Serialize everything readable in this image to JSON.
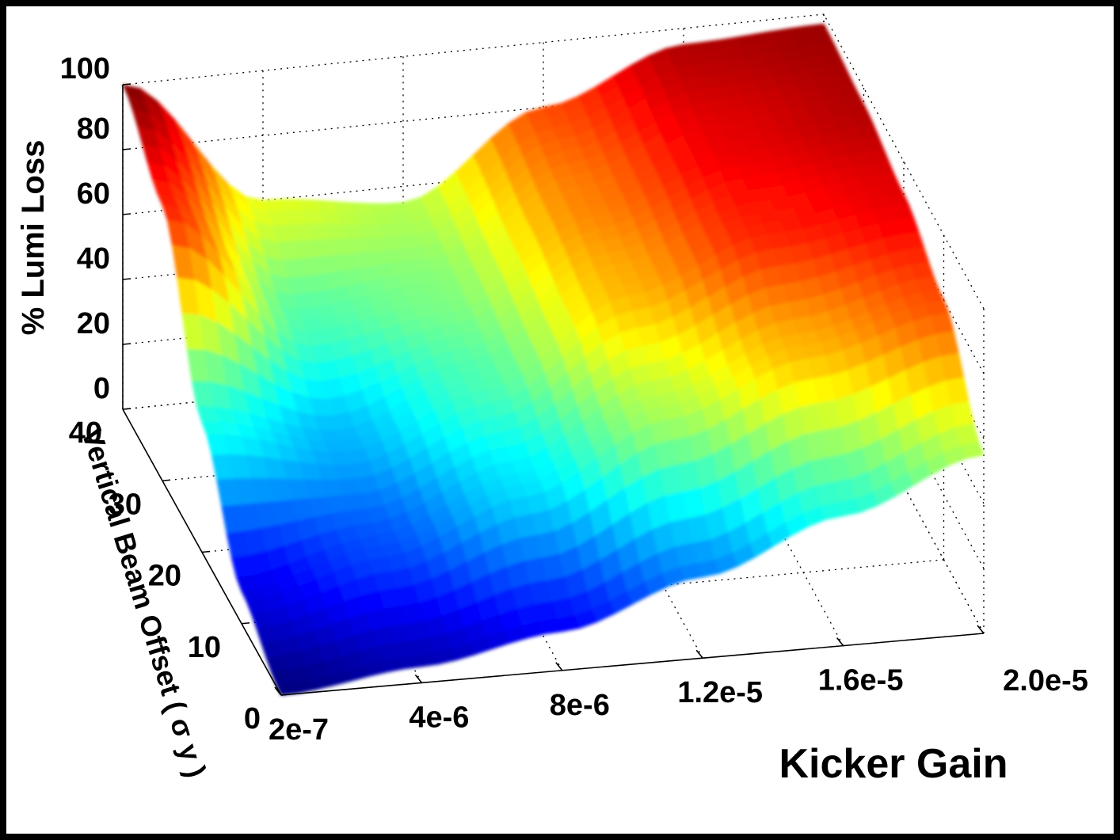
{
  "chart_data": {
    "type": "surface",
    "zlabel": "% Lumi Loss",
    "ylabel": "Vertical Beam Offset ( σ y )",
    "xlabel": "Kicker Gain",
    "z_ticks": [
      "100",
      "80",
      "60",
      "40",
      "20",
      "0"
    ],
    "y_ticks": [
      "40",
      "30",
      "20",
      "10",
      "0"
    ],
    "x_ticks": [
      "2e-7",
      "4e-6",
      "8e-6",
      "1.2e-5",
      "1.6e-5",
      "2.0e-5"
    ],
    "zlim": [
      0,
      100
    ],
    "ylim": [
      0,
      40
    ],
    "xlim": [
      2e-07,
      2e-05
    ],
    "grid": true,
    "colormap": "jet",
    "surface_samples": {
      "kicker_gain": [
        2e-07,
        4e-06,
        8e-06,
        1.2e-05,
        1.6e-05,
        2e-05
      ],
      "vertical_offset": [
        0,
        10,
        20,
        30,
        40
      ],
      "lumi_loss": [
        [
          0,
          5,
          12,
          25,
          40,
          55
        ],
        [
          10,
          20,
          35,
          55,
          70,
          80
        ],
        [
          40,
          30,
          45,
          70,
          85,
          90
        ],
        [
          85,
          45,
          50,
          75,
          90,
          95
        ],
        [
          100,
          60,
          55,
          80,
          95,
          97
        ]
      ]
    }
  }
}
